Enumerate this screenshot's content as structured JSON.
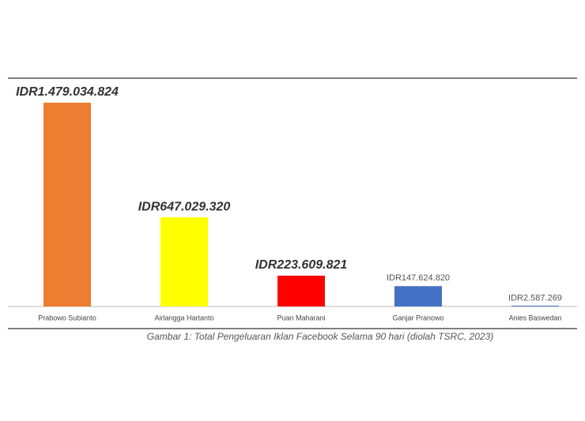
{
  "chart_data": {
    "type": "bar",
    "categories": [
      "Prabowo Subianto",
      "Airlangga Hartanto",
      "Puan Maharani",
      "Ganjar Pranowo",
      "Anies Baswedan"
    ],
    "values": [
      1479034824,
      647029320,
      223609821,
      147624820,
      2587269
    ],
    "value_labels": [
      "IDR1.479.034.824",
      "IDR647.029.320",
      "IDR223.609.821",
      "IDR147.624.820",
      "IDR2.587.269"
    ],
    "colors": [
      "#ed7d31",
      "#ffff00",
      "#ff0000",
      "#4472c4",
      "#4472c4"
    ],
    "caption": "Gambar 1: Total Pengeluaran Iklan Facebook Selama 90 hari (diolah TSRC, 2023)"
  }
}
